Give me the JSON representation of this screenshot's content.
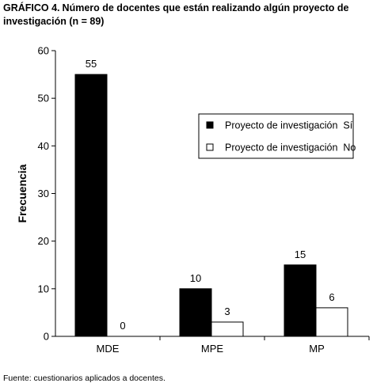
{
  "figure": {
    "label": "GRÁFICO 4.",
    "title": "Número de docentes que están realizando algún proyecto de investigación (n = 89)",
    "source": "Fuente: cuestionarios aplicados a docentes."
  },
  "chart_data": {
    "type": "bar",
    "categories": [
      "MDE",
      "MPE",
      "MP"
    ],
    "series": [
      {
        "name": "Proyecto de investigación  Sí",
        "values": [
          55,
          10,
          15
        ],
        "color": "#000000"
      },
      {
        "name": "Proyecto de investigación  No",
        "values": [
          0,
          3,
          6
        ],
        "color": "#ffffff"
      }
    ],
    "ylabel": "Frecuencia",
    "xlabel": "",
    "ylim": [
      0,
      60
    ],
    "yticks": [
      0,
      10,
      20,
      30,
      40,
      50,
      60
    ],
    "grid": false,
    "data_labels": true,
    "legend_position": "right"
  }
}
